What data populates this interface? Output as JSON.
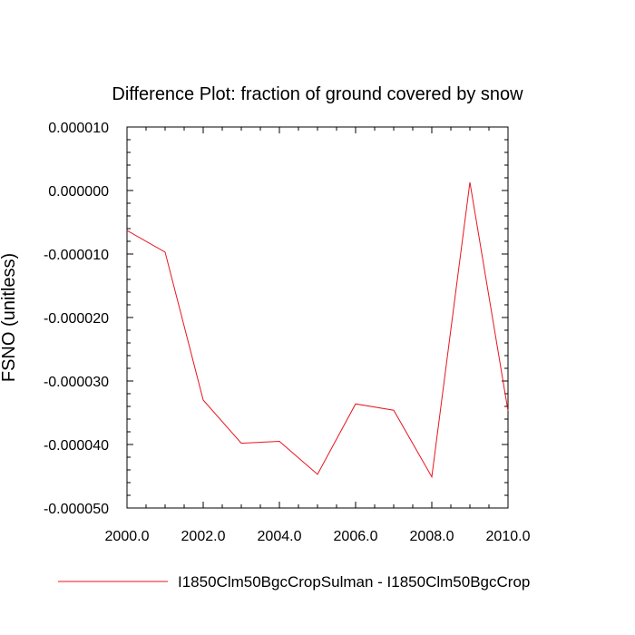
{
  "chart_data": {
    "type": "line",
    "title": "Difference Plot: fraction of ground covered by snow",
    "ylabel": "FSNO  (unitless)",
    "xlabel": "",
    "xlim": [
      2000.0,
      2010.0
    ],
    "ylim": [
      -5e-05,
      1e-05
    ],
    "x_ticks": [
      "2000.0",
      "2002.0",
      "2004.0",
      "2006.0",
      "2008.0",
      "2010.0"
    ],
    "y_ticks": [
      "0.000010",
      "0.000000",
      "-0.000010",
      "-0.000020",
      "-0.000030",
      "-0.000040",
      "-0.000050"
    ],
    "series": [
      {
        "name": "I1850Clm50BgcCropSulman - I1850Clm50BgcCrop",
        "color": "#e8141e",
        "x": [
          2000,
          2001,
          2002,
          2003,
          2004,
          2005,
          2006,
          2007,
          2008,
          2009,
          2010
        ],
        "y": [
          -6.3e-06,
          -9.7e-06,
          -3.3e-05,
          -3.98e-05,
          -3.95e-05,
          -4.47e-05,
          -3.36e-05,
          -3.46e-05,
          -4.51e-05,
          1.3e-06,
          -3.47e-05
        ]
      }
    ],
    "grid": false,
    "legend_position": "bottom"
  }
}
